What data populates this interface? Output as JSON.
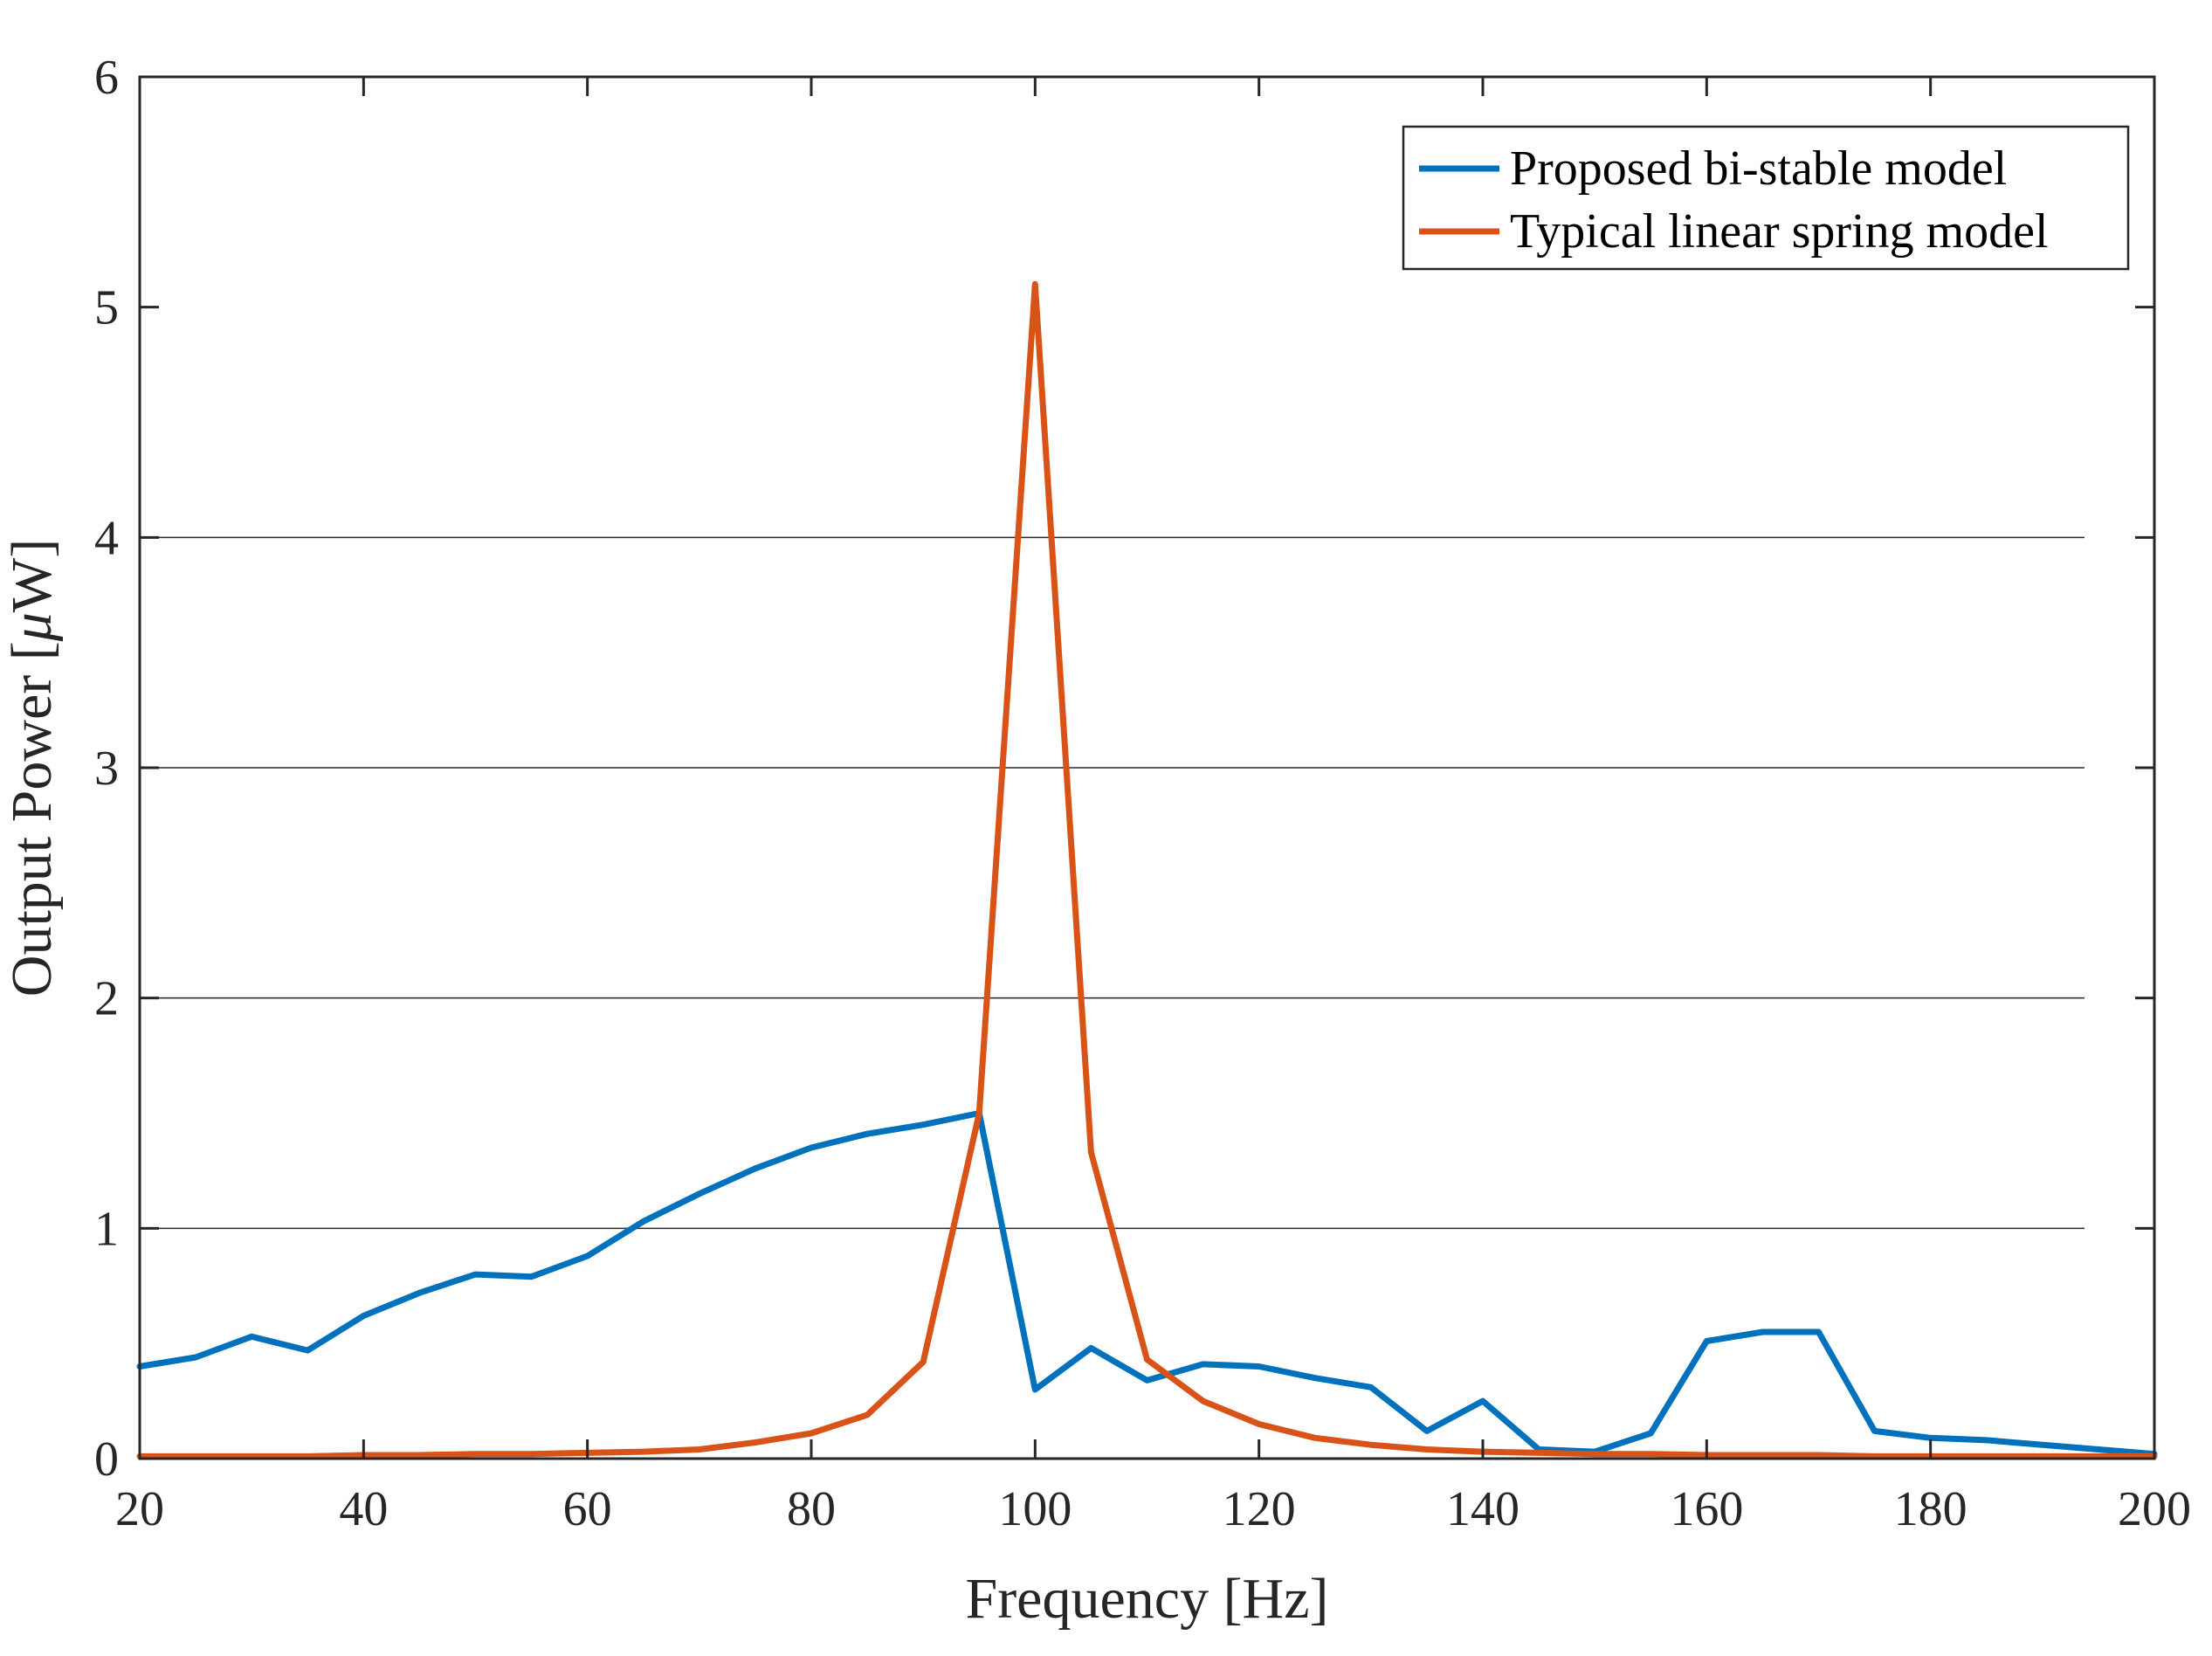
{
  "chart_data": {
    "type": "line",
    "title": "",
    "xlabel": "Frequency [Hz]",
    "ylabel_prefix": "Output Power [",
    "ylabel_mu": "μ",
    "ylabel_suffix": "W]",
    "xlim": [
      20,
      200
    ],
    "ylim": [
      0,
      6
    ],
    "xticks": [
      20,
      40,
      60,
      80,
      100,
      120,
      140,
      160,
      180,
      200
    ],
    "yticks": [
      0,
      1,
      2,
      3,
      4,
      5,
      6
    ],
    "gridlines_y": [
      1,
      2,
      3,
      4
    ],
    "legend_position": "top-right",
    "series": [
      {
        "name": "Proposed bi-stable model",
        "color": "#0072BD",
        "x": [
          20,
          25,
          30,
          35,
          40,
          45,
          50,
          55,
          60,
          65,
          70,
          75,
          80,
          85,
          90,
          95,
          100,
          105,
          110,
          115,
          120,
          125,
          130,
          135,
          140,
          145,
          150,
          155,
          160,
          165,
          170,
          175,
          180,
          185,
          190,
          195,
          200
        ],
        "y": [
          0.4,
          0.44,
          0.53,
          0.47,
          0.62,
          0.72,
          0.8,
          0.79,
          0.88,
          1.03,
          1.15,
          1.26,
          1.35,
          1.41,
          1.45,
          1.5,
          0.3,
          0.48,
          0.34,
          0.41,
          0.4,
          0.35,
          0.31,
          0.12,
          0.25,
          0.04,
          0.03,
          0.11,
          0.51,
          0.55,
          0.55,
          0.12,
          0.09,
          0.08,
          0.06,
          0.04,
          0.02
        ]
      },
      {
        "name": "Typical linear spring model",
        "color": "#D95319",
        "x": [
          20,
          25,
          30,
          35,
          40,
          45,
          50,
          55,
          60,
          65,
          70,
          75,
          80,
          85,
          90,
          95,
          100,
          105,
          110,
          115,
          120,
          125,
          130,
          135,
          140,
          145,
          150,
          155,
          160,
          165,
          170,
          175,
          180,
          185,
          190,
          195,
          200
        ],
        "y": [
          0.01,
          0.01,
          0.01,
          0.01,
          0.015,
          0.015,
          0.02,
          0.02,
          0.025,
          0.03,
          0.04,
          0.07,
          0.11,
          0.19,
          0.42,
          1.5,
          5.1,
          1.33,
          0.43,
          0.25,
          0.15,
          0.09,
          0.06,
          0.04,
          0.03,
          0.025,
          0.02,
          0.02,
          0.015,
          0.015,
          0.015,
          0.01,
          0.01,
          0.01,
          0.01,
          0.01,
          0.01
        ]
      }
    ]
  }
}
